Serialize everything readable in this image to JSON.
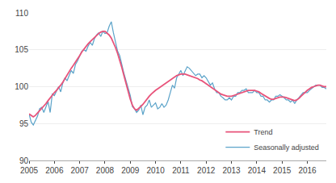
{
  "chart_data": {
    "type": "line",
    "x": [
      2005,
      2005.0833,
      2005.1667,
      2005.25,
      2005.3333,
      2005.4167,
      2005.5,
      2005.5833,
      2005.6667,
      2005.75,
      2005.8333,
      2005.9167,
      2006,
      2006.0833,
      2006.1667,
      2006.25,
      2006.3333,
      2006.4167,
      2006.5,
      2006.5833,
      2006.6667,
      2006.75,
      2006.8333,
      2006.9167,
      2007,
      2007.0833,
      2007.1667,
      2007.25,
      2007.3333,
      2007.4167,
      2007.5,
      2007.5833,
      2007.6667,
      2007.75,
      2007.8333,
      2007.9167,
      2008,
      2008.0833,
      2008.1667,
      2008.25,
      2008.3333,
      2008.4167,
      2008.5,
      2008.5833,
      2008.6667,
      2008.75,
      2008.8333,
      2008.9167,
      2009,
      2009.0833,
      2009.1667,
      2009.25,
      2009.3333,
      2009.4167,
      2009.5,
      2009.5833,
      2009.6667,
      2009.75,
      2009.8333,
      2009.9167,
      2010,
      2010.0833,
      2010.1667,
      2010.25,
      2010.3333,
      2010.4167,
      2010.5,
      2010.5833,
      2010.6667,
      2010.75,
      2010.8333,
      2010.9167,
      2011,
      2011.0833,
      2011.1667,
      2011.25,
      2011.3333,
      2011.4167,
      2011.5,
      2011.5833,
      2011.6667,
      2011.75,
      2011.8333,
      2011.9167,
      2012,
      2012.0833,
      2012.1667,
      2012.25,
      2012.3333,
      2012.4167,
      2012.5,
      2012.5833,
      2012.6667,
      2012.75,
      2012.8333,
      2012.9167,
      2013,
      2013.0833,
      2013.1667,
      2013.25,
      2013.3333,
      2013.4167,
      2013.5,
      2013.5833,
      2013.6667,
      2013.75,
      2013.8333,
      2013.9167,
      2014,
      2014.0833,
      2014.1667,
      2014.25,
      2014.3333,
      2014.4167,
      2014.5,
      2014.5833,
      2014.6667,
      2014.75,
      2014.8333,
      2014.9167,
      2015,
      2015.0833,
      2015.1667,
      2015.25,
      2015.3333,
      2015.4167,
      2015.5,
      2015.5833,
      2015.6667,
      2015.75,
      2015.8333,
      2015.9167,
      2016,
      2016.0833,
      2016.1667,
      2016.25,
      2016.3333,
      2016.4167,
      2016.5,
      2016.5833,
      2016.6667,
      2016.75,
      2016.8333,
      2016.9167
    ],
    "series": [
      {
        "name": "Seasonally adjusted",
        "color": "#5ba3c9",
        "values": [
          96.3,
          95.2,
          94.8,
          95.5,
          96.0,
          97.0,
          97.2,
          96.5,
          97.2,
          98.0,
          96.5,
          99.0,
          98.8,
          99.5,
          100.0,
          99.3,
          100.5,
          101.2,
          100.8,
          101.5,
          102.2,
          101.8,
          103.0,
          103.5,
          104.2,
          104.8,
          105.0,
          104.8,
          105.5,
          106.0,
          105.6,
          106.5,
          107.0,
          107.3,
          106.8,
          107.5,
          107.2,
          107.3,
          108.2,
          108.8,
          107.3,
          106.0,
          104.8,
          104.2,
          102.8,
          101.8,
          100.8,
          99.8,
          98.8,
          97.3,
          97.0,
          96.5,
          96.8,
          97.5,
          96.2,
          97.2,
          97.5,
          98.2,
          97.2,
          97.5,
          97.8,
          97.0,
          97.2,
          97.7,
          97.2,
          97.5,
          98.2,
          99.2,
          100.2,
          99.8,
          101.2,
          101.7,
          102.2,
          101.5,
          102.2,
          102.7,
          102.5,
          102.2,
          101.8,
          101.5,
          101.7,
          101.7,
          101.2,
          101.5,
          101.2,
          100.7,
          100.2,
          100.5,
          99.7,
          99.2,
          99.2,
          98.7,
          98.5,
          98.2,
          98.2,
          98.5,
          98.2,
          98.7,
          98.7,
          99.2,
          99.2,
          99.5,
          99.5,
          99.7,
          99.2,
          99.2,
          99.2,
          99.5,
          99.2,
          99.2,
          98.7,
          98.7,
          98.2,
          98.2,
          97.9,
          98.2,
          98.2,
          98.7,
          98.7,
          98.9,
          98.7,
          98.5,
          98.2,
          98.2,
          97.9,
          98.2,
          97.7,
          98.2,
          98.5,
          98.9,
          99.2,
          99.2,
          99.2,
          99.5,
          99.7,
          99.9,
          100.2,
          100.2,
          100.2,
          99.9,
          99.9,
          99.7,
          99.7,
          99.7
        ]
      },
      {
        "name": "Trend",
        "color": "#e8537a",
        "values": [
          96.3,
          96.1,
          95.9,
          96.1,
          96.4,
          96.7,
          97.0,
          97.3,
          97.7,
          98.1,
          98.5,
          98.9,
          99.2,
          99.5,
          99.8,
          100.2,
          100.6,
          101.1,
          101.6,
          102.1,
          102.5,
          102.9,
          103.3,
          103.7,
          104.2,
          104.7,
          105.1,
          105.5,
          105.8,
          106.1,
          106.4,
          106.7,
          107.0,
          107.2,
          107.4,
          107.5,
          107.5,
          107.3,
          107.0,
          106.6,
          106.0,
          105.3,
          104.5,
          103.6,
          102.6,
          101.5,
          100.4,
          99.3,
          98.3,
          97.5,
          97.0,
          96.8,
          97.0,
          97.3,
          97.6,
          98.0,
          98.3,
          98.7,
          99.0,
          99.3,
          99.5,
          99.7,
          99.9,
          100.1,
          100.3,
          100.5,
          100.7,
          100.9,
          101.1,
          101.3,
          101.5,
          101.6,
          101.7,
          101.7,
          101.7,
          101.6,
          101.5,
          101.4,
          101.3,
          101.2,
          101.1,
          100.9,
          100.8,
          100.6,
          100.4,
          100.2,
          100.0,
          99.8,
          99.6,
          99.4,
          99.2,
          99.0,
          98.9,
          98.8,
          98.7,
          98.7,
          98.7,
          98.8,
          98.9,
          99.0,
          99.1,
          99.2,
          99.3,
          99.4,
          99.5,
          99.5,
          99.5,
          99.5,
          99.4,
          99.3,
          99.1,
          98.9,
          98.7,
          98.5,
          98.4,
          98.3,
          98.3,
          98.4,
          98.5,
          98.6,
          98.6,
          98.6,
          98.5,
          98.4,
          98.3,
          98.2,
          98.1,
          98.2,
          98.4,
          98.7,
          99.0,
          99.3,
          99.5,
          99.7,
          99.9,
          100.0,
          100.1,
          100.2,
          100.2,
          100.1,
          100.0,
          100.0,
          99.9,
          99.8
        ]
      }
    ],
    "xlim": [
      2005.0,
      2016.75
    ],
    "xticks": [
      2005,
      2006,
      2007,
      2008,
      2009,
      2010,
      2011,
      2012,
      2013,
      2014,
      2015,
      2016
    ],
    "ylim": [
      90,
      110
    ],
    "yticks": [
      90,
      95,
      100,
      105,
      110
    ],
    "grid": true,
    "legend": "lower right"
  }
}
